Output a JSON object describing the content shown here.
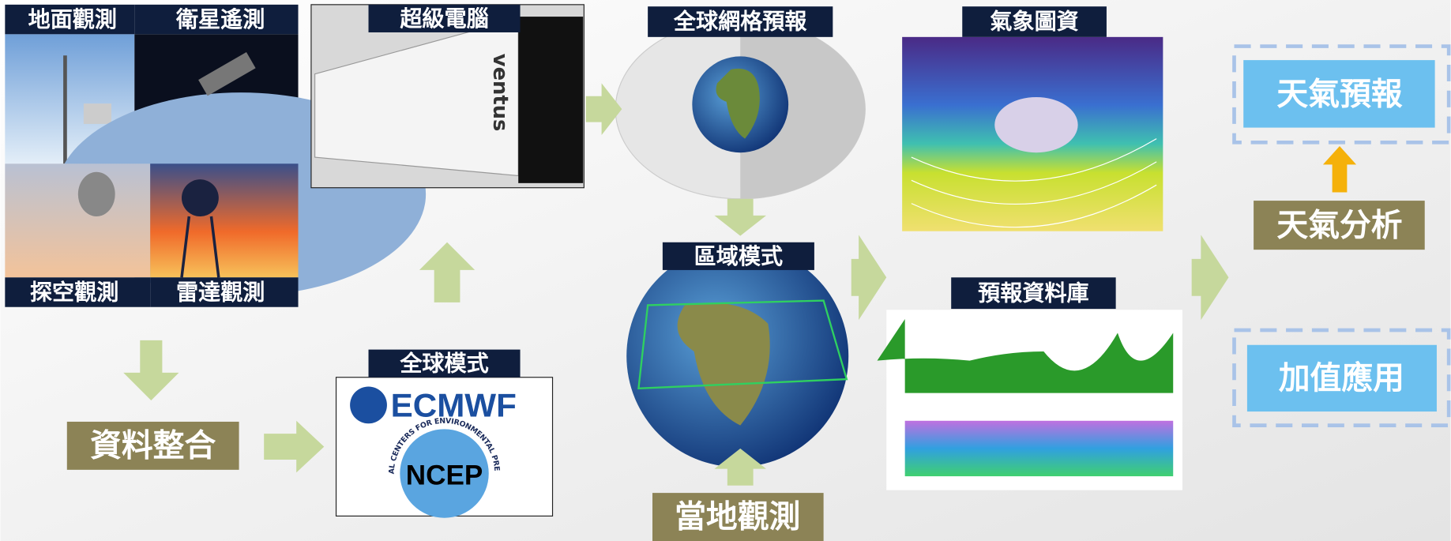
{
  "observations": {
    "surface": "地面觀測",
    "satellite": "衛星遙測",
    "sounding": "探空觀測",
    "radar": "雷達觀測"
  },
  "supercomputer": {
    "label": "超級電腦",
    "brand": "ventus"
  },
  "global_model": {
    "label": "全球模式",
    "centers": [
      "ECMWF",
      "NCEP"
    ],
    "ncep_ring": "NATIONAL CENTERS FOR ENVIRONMENTAL PREDICTION"
  },
  "global_grid_forecast": "全球網格預報",
  "regional_model": "區域模式",
  "local_observation": "當地觀測",
  "data_integration": "資料整合",
  "weather_charts": "氣象圖資",
  "forecast_database": "預報資料庫",
  "weather_analysis": "天氣分析",
  "weather_forecast": "天氣預報",
  "value_added": "加值應用"
}
